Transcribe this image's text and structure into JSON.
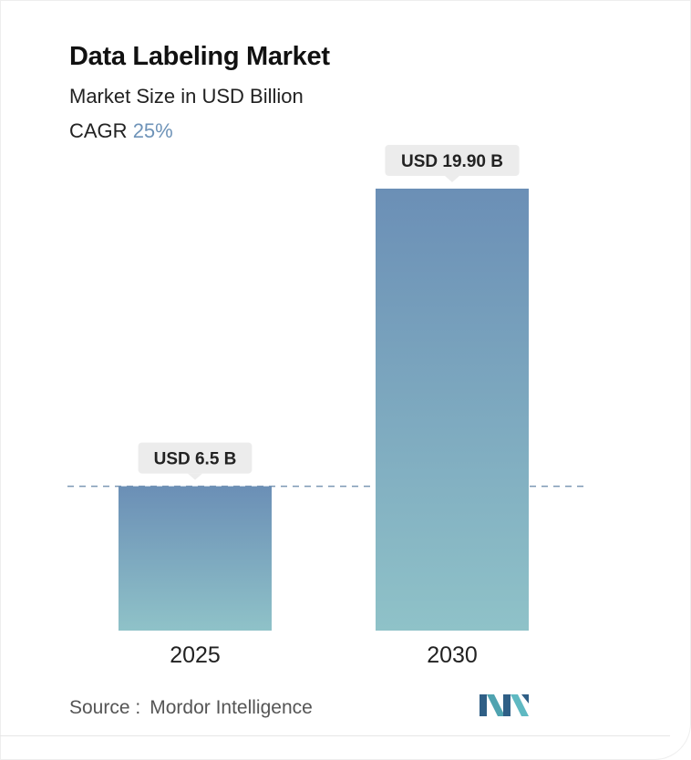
{
  "header": {
    "title": "Data Labeling Market",
    "subtitle": "Market Size in USD Billion",
    "cagr_label": "CAGR",
    "cagr_value": "25%"
  },
  "chart_data": {
    "type": "bar",
    "title": "Data Labeling Market",
    "ylabel": "Market Size in USD Billion",
    "categories": [
      "2025",
      "2030"
    ],
    "values": [
      6.5,
      19.9
    ],
    "data_labels": [
      "USD 6.5 B",
      "USD 19.90 B"
    ],
    "ylim": [
      0,
      19.9
    ],
    "grid": false,
    "reference_line": "dashed line at 2025 value",
    "colors": {
      "bar_top": "#6b8fb6",
      "bar_bottom": "#8fc2c8",
      "label_bg": "#ececec",
      "dash": "#7c98b4"
    }
  },
  "footer": {
    "source_label": "Source :",
    "source_name": "Mordor Intelligence",
    "logo_icon": "mordor-intelligence-logo-icon"
  }
}
